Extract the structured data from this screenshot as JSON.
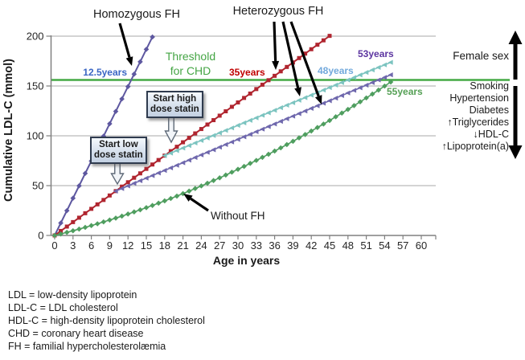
{
  "figure": {
    "top_labels": {
      "homozygous": "Homozygous FH",
      "heterozygous": "Heterozygous FH"
    },
    "threshold_label_line1": "Threshold",
    "threshold_label_line2": "for CHD",
    "crossing_labels": {
      "homozygous": "12.5years",
      "het_untreated": "35years",
      "het_high_dose": "48years",
      "het_low_dose": "53years",
      "without_fh": "55years"
    },
    "without_fh_label": "Without FH",
    "callouts": {
      "high": [
        "Start high",
        "dose statin"
      ],
      "low": [
        "Start low",
        "dose statin"
      ]
    },
    "right_panel": {
      "above": "Female sex",
      "below": [
        "Smoking",
        "Hypertension",
        "Diabetes",
        "↑Triglycerides",
        "↓HDL-C",
        "↑Lipoprotein(a)"
      ]
    },
    "definitions": [
      "LDL = low-density  lipoprotein",
      "LDL-C = LDL cholesterol",
      "HDL-C = high-density  lipoprotein  cholesterol",
      "CHD = coronary  heart  disease",
      "FH = familial hypercholesterolæmia"
    ]
  },
  "chart_data": {
    "type": "line",
    "xlabel": "Age in years",
    "ylabel": "Cumulative LDL-C (mmol)",
    "x_ticks": [
      0,
      3,
      6,
      9,
      12,
      15,
      18,
      21,
      24,
      27,
      30,
      33,
      36,
      39,
      42,
      45,
      48,
      51,
      54,
      57,
      60
    ],
    "y_ticks": [
      0,
      50,
      100,
      150,
      200
    ],
    "xlim": [
      0,
      62
    ],
    "ylim": [
      0,
      200
    ],
    "grid": "horizontal",
    "threshold": {
      "value": 156,
      "color": "#44a944",
      "label": "Threshold for CHD"
    },
    "axis_color": "#808080",
    "grid_color": "#a9a9a9",
    "series": [
      {
        "id": "homozygous-fh",
        "label": "Homozygous FH",
        "threshold_age_label": "12.5years",
        "color": "#5e58a0",
        "marker": "diamond",
        "start_age": 0,
        "step": 1,
        "values": [
          0,
          12.5,
          24.9,
          37.4,
          49.8,
          62.3,
          74.7,
          87.2,
          99.6,
          112.1,
          124.5,
          137,
          149.4,
          161.9,
          174.3,
          186.8,
          199.2
        ]
      },
      {
        "id": "heterozygous-fh-untreated",
        "label": "Heterozygous FH",
        "threshold_age_label": "35years",
        "color": "#b0252f",
        "marker": "square",
        "start_age": 0,
        "step": 1,
        "values": [
          0,
          4.5,
          8.9,
          13.4,
          17.8,
          22.3,
          26.7,
          31.2,
          35.6,
          40.1,
          44.5,
          49,
          53.4,
          57.9,
          62.3,
          66.8,
          71.2,
          75.7,
          80.1,
          84.6,
          89,
          93.5,
          97.9,
          102.4,
          106.8,
          111.3,
          115.7,
          120.2,
          124.6,
          129.1,
          133.5,
          138,
          142.4,
          146.9,
          151.3,
          155.8,
          160.2,
          164.7,
          169.1,
          173.6,
          178,
          182.5,
          186.9,
          191.4,
          195.8,
          200.3
        ]
      },
      {
        "id": "heterozygous-fh-high-dose-statin",
        "label": "Heterozygous FH",
        "threshold_age_label": "48years",
        "color": "#7cc4c0",
        "marker": "triangle",
        "start_age": 18,
        "step": 1,
        "values": [
          80.1,
          82.6,
          85.2,
          87.7,
          90.2,
          92.8,
          95.3,
          97.8,
          100.3,
          102.9,
          105.4,
          107.9,
          110.5,
          113,
          115.5,
          118,
          120.6,
          123.1,
          125.6,
          128.2,
          130.7,
          133.2,
          135.7,
          138.3,
          140.8,
          143.3,
          145.9,
          148.4,
          150.9,
          153.4,
          156,
          158.5,
          161.1,
          163.6,
          166.1,
          168.6,
          171.2,
          173.7
        ]
      },
      {
        "id": "heterozygous-fh-low-dose-statin",
        "label": "Heterozygous FH",
        "threshold_age_label": "53years",
        "color": "#6f68ad",
        "marker": "triangle",
        "start_age": 10,
        "step": 1,
        "values": [
          44.5,
          47.1,
          49.7,
          52.3,
          54.9,
          57.5,
          60.1,
          62.7,
          65.2,
          67.8,
          70.4,
          73,
          75.6,
          78.2,
          80.8,
          83.4,
          86,
          88.6,
          91.2,
          93.8,
          96.4,
          99,
          101.5,
          104.1,
          106.7,
          109.3,
          111.9,
          114.5,
          117.1,
          119.7,
          122.3,
          124.9,
          127.5,
          130.1,
          132.7,
          135.2,
          137.8,
          140.4,
          143,
          145.6,
          148.2,
          150.8,
          153.4,
          156,
          158.6,
          161.2
        ]
      },
      {
        "id": "without-fh",
        "label": "Without FH",
        "threshold_age_label": "55years",
        "color": "#4f9e5f",
        "marker": "diamond",
        "start_age": 0,
        "step": 1,
        "values": [
          0,
          1.5,
          3.1,
          4.7,
          6.4,
          8.1,
          9.9,
          11.7,
          13.6,
          15.5,
          17.4,
          19.4,
          21.5,
          23.6,
          25.7,
          27.9,
          30.1,
          32.4,
          34.7,
          37.1,
          39.5,
          42,
          44.5,
          47.1,
          49.7,
          52.4,
          55.1,
          57.8,
          60.6,
          63.5,
          66.4,
          69.3,
          72.3,
          75.3,
          78.4,
          81.5,
          84.7,
          87.9,
          91.2,
          94.5,
          97.9,
          101.3,
          104.8,
          108.3,
          111.8,
          115.4,
          119.1,
          122.8,
          126.5,
          130.3,
          134.1,
          138,
          141.9,
          145.9,
          149.9,
          154
        ]
      }
    ]
  }
}
